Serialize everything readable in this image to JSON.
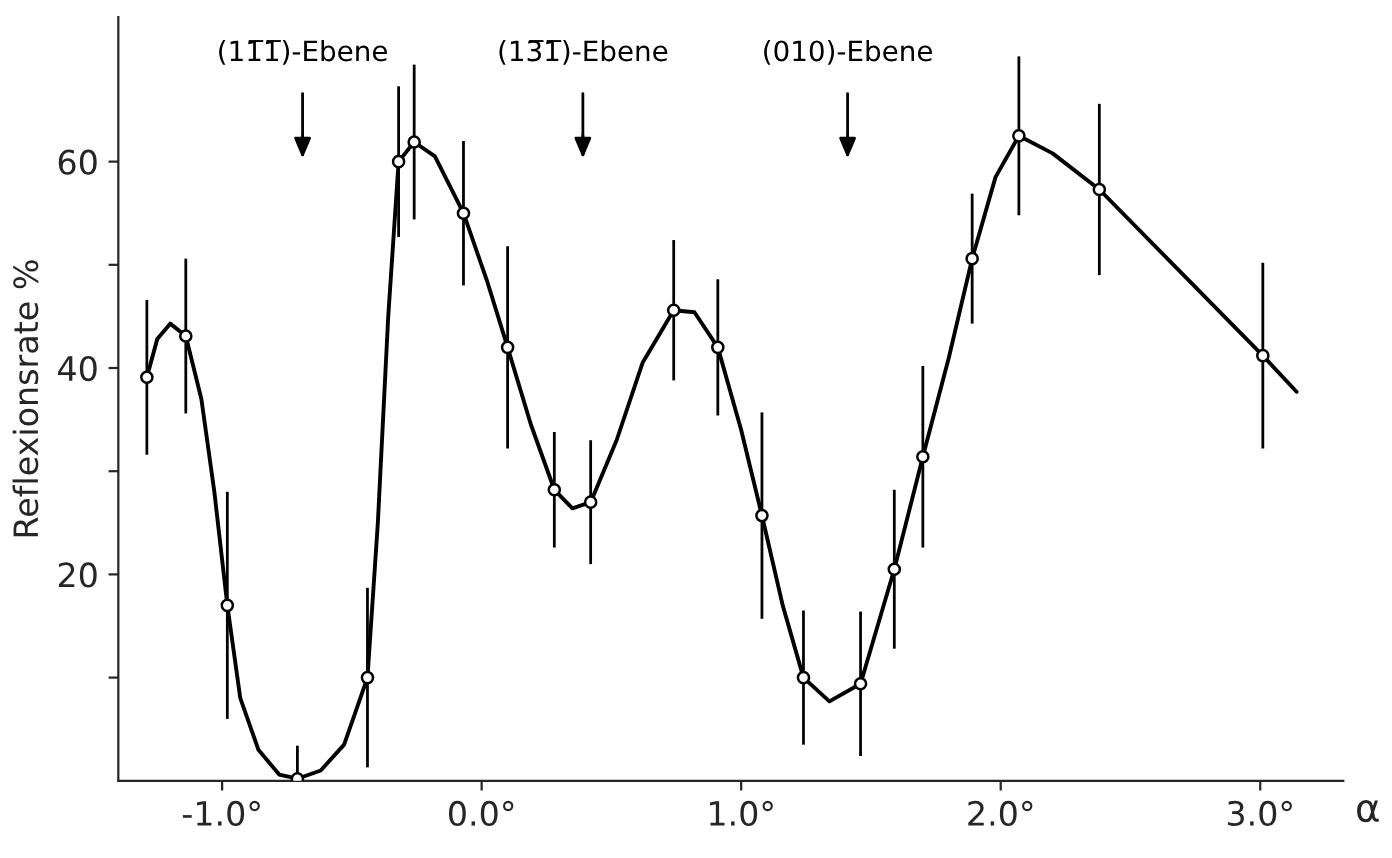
{
  "chart_data": {
    "type": "scatter",
    "ylabel": "Reflexionsrate %",
    "xlabel": "α",
    "xlim": [
      -1.4,
      3.32
    ],
    "ylim": [
      0,
      74
    ],
    "xticks": [
      {
        "value": -1.0,
        "label": "-1.0°"
      },
      {
        "value": 0.0,
        "label": "0.0°"
      },
      {
        "value": 1.0,
        "label": "1.0°"
      },
      {
        "value": 2.0,
        "label": "2.0°"
      },
      {
        "value": 3.0,
        "label": "3.0°"
      }
    ],
    "yticks": [
      {
        "value": 10,
        "label": null
      },
      20,
      {
        "value": 30,
        "label": null
      },
      40,
      {
        "value": 50,
        "label": null
      },
      60
    ],
    "grid": false,
    "marker": "circle",
    "series": [
      {
        "color": "#000000",
        "x": [
          -1.29,
          -1.14,
          -0.98,
          -0.71,
          -0.44,
          -0.32,
          -0.26,
          -0.07,
          0.1,
          0.28,
          0.42,
          0.74,
          0.91,
          1.08,
          1.24,
          1.46,
          1.59,
          1.7,
          1.89,
          2.07,
          2.38,
          3.01
        ],
        "values": [
          39.1,
          43.1,
          17.0,
          0.2,
          10.0,
          60.0,
          61.9,
          55.0,
          42.0,
          28.2,
          27.0,
          45.6,
          42.0,
          25.7,
          10.0,
          9.4,
          20.5,
          31.4,
          50.6,
          62.5,
          57.3,
          41.2
        ],
        "errors": [
          7.5,
          7.5,
          11,
          [
            0,
            3.2
          ],
          8.7,
          7.3,
          7.5,
          7,
          9.8,
          5.6,
          6,
          6.8,
          6.6,
          10,
          6.5,
          7,
          7.7,
          8.8,
          6.3,
          7.7,
          8.3,
          9
        ]
      },
      {
        "type": "line",
        "color": "#000000",
        "line_style": "solid",
        "marker": "none",
        "x": [
          -1.29,
          -1.25,
          -1.2,
          -1.14,
          -1.08,
          -1.03,
          -0.98,
          -0.93,
          -0.86,
          -0.78,
          -0.71,
          -0.62,
          -0.53,
          -0.44,
          -0.4,
          -0.36,
          -0.32,
          -0.26,
          -0.18,
          -0.07,
          0.02,
          0.1,
          0.19,
          0.28,
          0.35,
          0.42,
          0.52,
          0.62,
          0.74,
          0.82,
          0.91,
          1.0,
          1.08,
          1.16,
          1.24,
          1.34,
          1.46,
          1.59,
          1.7,
          1.8,
          1.89,
          1.98,
          2.07,
          2.2,
          2.38,
          3.01,
          3.14
        ],
        "values": [
          39.1,
          42.8,
          44.3,
          43.1,
          37,
          28,
          17,
          8,
          3,
          0.6,
          0.2,
          1.0,
          3.5,
          10,
          25,
          45,
          60,
          61.9,
          60.5,
          55,
          48.5,
          42,
          34.5,
          28.2,
          26.4,
          27,
          33,
          40.5,
          45.6,
          45.4,
          42,
          34,
          25.7,
          17,
          10,
          7.7,
          9.4,
          20.5,
          31.4,
          41,
          50.6,
          58.5,
          62.5,
          60.8,
          57.3,
          41.2,
          37.7
        ]
      }
    ],
    "ref_lines": [
      {
        "axis": "x",
        "value": -0.69,
        "label": "(11̅1̅)-Ebene"
      },
      {
        "axis": "x",
        "value": 0.39,
        "label": "(13̅1̅)-Ebene"
      },
      {
        "axis": "x",
        "value": 1.41,
        "label": "(010)-Ebene"
      }
    ]
  }
}
